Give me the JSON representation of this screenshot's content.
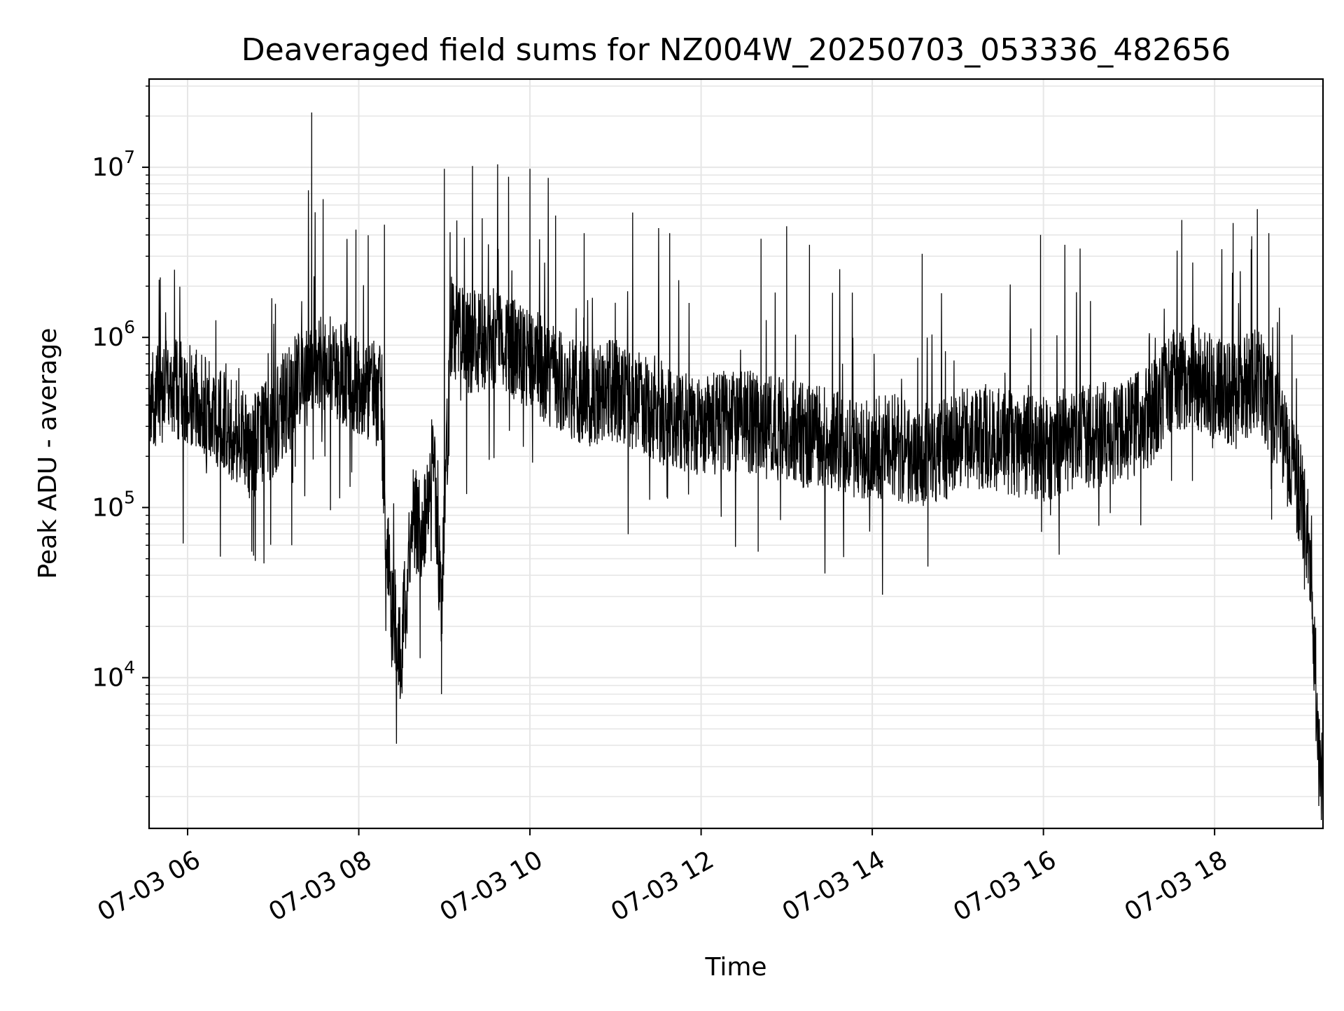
{
  "chart_data": {
    "type": "line",
    "title": "Deaveraged field sums for NZ004W_20250703_053336_482656",
    "xlabel": "Time",
    "ylabel": "Peak ADU - average",
    "y_scale": "log",
    "x_range": [
      "07-03 05:33",
      "07-03 19:16"
    ],
    "ylim": [
      1300,
      33000000
    ],
    "grid": true,
    "legend": "none",
    "x_ticks": [
      "07-03 06",
      "07-03 08",
      "07-03 10",
      "07-03 12",
      "07-03 14",
      "07-03 16",
      "07-03 18"
    ],
    "y_ticks": [
      {
        "base": "10",
        "exp": "4",
        "value": 10000
      },
      {
        "base": "10",
        "exp": "5",
        "value": 100000
      },
      {
        "base": "10",
        "exp": "6",
        "value": 1000000
      },
      {
        "base": "10",
        "exp": "7",
        "value": 10000000
      }
    ],
    "series": [
      {
        "color": "#000000",
        "x": [
          "07-03 05:33",
          "07-03 05:45",
          "07-03 06:00",
          "07-03 06:15",
          "07-03 06:30",
          "07-03 06:45",
          "07-03 07:00",
          "07-03 07:15",
          "07-03 07:30",
          "07-03 07:45",
          "07-03 08:00",
          "07-03 08:15",
          "07-03 08:22",
          "07-03 08:30",
          "07-03 08:38",
          "07-03 08:45",
          "07-03 08:52",
          "07-03 08:58",
          "07-03 09:05",
          "07-03 09:15",
          "07-03 09:30",
          "07-03 09:45",
          "07-03 10:00",
          "07-03 10:15",
          "07-03 10:30",
          "07-03 10:45",
          "07-03 11:00",
          "07-03 11:15",
          "07-03 11:30",
          "07-03 11:45",
          "07-03 12:00",
          "07-03 12:15",
          "07-03 12:30",
          "07-03 12:45",
          "07-03 13:00",
          "07-03 13:15",
          "07-03 13:30",
          "07-03 13:45",
          "07-03 14:00",
          "07-03 14:15",
          "07-03 14:30",
          "07-03 14:45",
          "07-03 15:00",
          "07-03 15:15",
          "07-03 15:30",
          "07-03 15:45",
          "07-03 16:00",
          "07-03 16:15",
          "07-03 16:30",
          "07-03 16:45",
          "07-03 17:00",
          "07-03 17:15",
          "07-03 17:30",
          "07-03 17:45",
          "07-03 18:00",
          "07-03 18:15",
          "07-03 18:30",
          "07-03 18:45",
          "07-03 19:00",
          "07-03 19:08",
          "07-03 19:12",
          "07-03 19:16"
        ],
        "y": [
          400000,
          500000,
          450000,
          380000,
          300000,
          220000,
          300000,
          500000,
          700000,
          650000,
          550000,
          450000,
          30000,
          15000,
          90000,
          70000,
          200000,
          25000,
          1200000,
          900000,
          1000000,
          850000,
          750000,
          600000,
          500000,
          450000,
          500000,
          420000,
          380000,
          340000,
          300000,
          330000,
          320000,
          300000,
          280000,
          260000,
          250000,
          230000,
          220000,
          230000,
          200000,
          210000,
          240000,
          260000,
          250000,
          230000,
          220000,
          240000,
          260000,
          270000,
          290000,
          350000,
          550000,
          600000,
          500000,
          450000,
          600000,
          300000,
          120000,
          50000,
          4000,
          2500
        ],
        "spikes": [
          {
            "x": "07-03 07:27",
            "y": 21000000
          },
          {
            "x": "07-03 07:35",
            "y": 6500000
          },
          {
            "x": "07-03 07:58",
            "y": 4300000
          },
          {
            "x": "07-03 08:18",
            "y": 4600000
          },
          {
            "x": "07-03 09:00",
            "y": 9800000
          },
          {
            "x": "07-03 09:45",
            "y": 8800000
          },
          {
            "x": "07-03 10:00",
            "y": 9800000
          },
          {
            "x": "07-03 10:18",
            "y": 5200000
          },
          {
            "x": "07-03 10:38",
            "y": 4100000
          },
          {
            "x": "07-03 11:38",
            "y": 4100000
          },
          {
            "x": "07-03 12:42",
            "y": 3800000
          },
          {
            "x": "07-03 13:00",
            "y": 4500000
          },
          {
            "x": "07-03 13:16",
            "y": 3500000
          },
          {
            "x": "07-03 14:35",
            "y": 3100000
          },
          {
            "x": "07-03 15:58",
            "y": 4000000
          },
          {
            "x": "07-03 16:15",
            "y": 3500000
          },
          {
            "x": "07-03 17:37",
            "y": 4900000
          },
          {
            "x": "07-03 18:13",
            "y": 4700000
          },
          {
            "x": "07-03 18:38",
            "y": 4100000
          }
        ],
        "dips": [
          {
            "x": "07-03 06:45",
            "y": 55000
          },
          {
            "x": "07-03 07:13",
            "y": 60000
          },
          {
            "x": "07-03 08:29",
            "y": 7500
          },
          {
            "x": "07-03 08:43",
            "y": 13000
          },
          {
            "x": "07-03 08:58",
            "y": 8000
          },
          {
            "x": "07-03 12:40",
            "y": 55000
          },
          {
            "x": "07-03 14:39",
            "y": 45000
          },
          {
            "x": "07-03 18:40",
            "y": 85000
          },
          {
            "x": "07-03 19:03",
            "y": 33000
          },
          {
            "x": "07-03 19:14",
            "y": 2000
          }
        ]
      }
    ]
  }
}
